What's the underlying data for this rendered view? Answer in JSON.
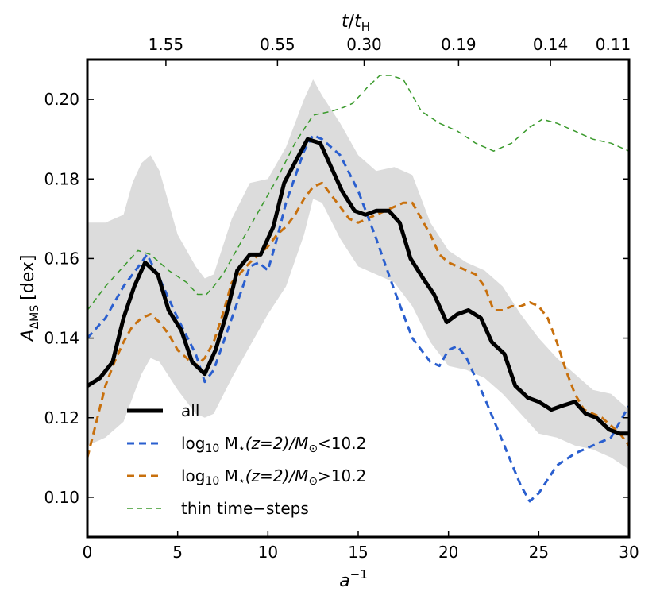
{
  "chart_data": {
    "type": "line",
    "xlabel_base": "a",
    "xlabel_sup": "−1",
    "ylabel_main": "A",
    "ylabel_sub": "ΔMS",
    "ylabel_unit": "[dex]",
    "top_axis_label_t": "t",
    "top_axis_label_slash": "/",
    "top_axis_label_tH": "t",
    "top_axis_label_H": "H",
    "xlim": [
      0,
      30
    ],
    "ylim": [
      0.09,
      0.21
    ],
    "x_ticks": [
      0,
      5,
      10,
      15,
      20,
      25,
      30
    ],
    "x_tick_labels": [
      "0",
      "5",
      "10",
      "15",
      "20",
      "25",
      "30"
    ],
    "y_ticks": [
      0.1,
      0.12,
      0.14,
      0.16,
      0.18,
      0.2
    ],
    "y_tick_labels": [
      "0.10",
      "0.12",
      "0.14",
      "0.16",
      "0.18",
      "0.20"
    ],
    "top_ticks": [
      4.35,
      10.53,
      15.33,
      20.56,
      25.65,
      30.0
    ],
    "top_tick_labels": [
      "1.55",
      "0.55",
      "0.30",
      "0.19",
      "0.14",
      "0.11"
    ],
    "legend_location": "lower-left",
    "band": {
      "x": [
        0,
        1,
        2,
        2.5,
        3,
        3.5,
        4,
        5,
        6,
        6.5,
        7,
        8,
        9,
        10,
        11,
        12,
        12.5,
        13,
        14,
        15,
        16,
        17,
        18,
        19,
        20,
        21,
        22,
        23,
        24,
        25,
        26,
        27,
        28,
        29,
        30
      ],
      "upper": [
        0.169,
        0.169,
        0.171,
        0.179,
        0.184,
        0.186,
        0.182,
        0.166,
        0.158,
        0.155,
        0.156,
        0.17,
        0.179,
        0.18,
        0.188,
        0.2,
        0.205,
        0.201,
        0.194,
        0.186,
        0.182,
        0.183,
        0.181,
        0.169,
        0.162,
        0.159,
        0.157,
        0.153,
        0.146,
        0.14,
        0.135,
        0.131,
        0.127,
        0.126,
        0.122
      ],
      "lower": [
        0.113,
        0.115,
        0.119,
        0.125,
        0.131,
        0.135,
        0.134,
        0.127,
        0.121,
        0.12,
        0.121,
        0.13,
        0.138,
        0.146,
        0.153,
        0.166,
        0.175,
        0.174,
        0.165,
        0.158,
        0.156,
        0.154,
        0.148,
        0.139,
        0.133,
        0.132,
        0.13,
        0.126,
        0.121,
        0.116,
        0.115,
        0.113,
        0.112,
        0.11,
        0.107
      ]
    },
    "series": [
      {
        "name": "all",
        "style": "solid-thick",
        "color": "#000000",
        "x": [
          0,
          0.7,
          1.4,
          2,
          2.6,
          3.2,
          3.9,
          4.5,
          5.2,
          5.8,
          6.5,
          7.1,
          7.7,
          8.3,
          9,
          9.6,
          10.3,
          10.9,
          11.6,
          12.2,
          12.9,
          13.5,
          14.1,
          14.8,
          15.4,
          16,
          16.7,
          17.3,
          17.9,
          18.6,
          19.2,
          19.9,
          20.5,
          21.1,
          21.8,
          22.4,
          23.1,
          23.7,
          24.4,
          25,
          25.7,
          26.3,
          27,
          27.6,
          28.2,
          28.9,
          29.5,
          30
        ],
        "y": [
          0.128,
          0.13,
          0.134,
          0.145,
          0.153,
          0.159,
          0.156,
          0.147,
          0.142,
          0.134,
          0.131,
          0.137,
          0.146,
          0.157,
          0.161,
          0.161,
          0.168,
          0.179,
          0.185,
          0.19,
          0.189,
          0.183,
          0.177,
          0.172,
          0.171,
          0.172,
          0.172,
          0.169,
          0.16,
          0.155,
          0.151,
          0.144,
          0.146,
          0.147,
          0.145,
          0.139,
          0.136,
          0.128,
          0.125,
          0.124,
          0.122,
          0.123,
          0.124,
          0.121,
          0.12,
          0.117,
          0.116,
          0.116
        ]
      },
      {
        "name": "log10 M*(z=2)/M⊙<10.2",
        "style": "dashed",
        "color": "#2a5fcf",
        "x": [
          0,
          1,
          2,
          3,
          3.3,
          4,
          5,
          6,
          6.5,
          7,
          8,
          9,
          9.5,
          10,
          10.5,
          11,
          12,
          12.5,
          13,
          14,
          15,
          16,
          17,
          18,
          19,
          19.5,
          20,
          20.5,
          21,
          22,
          23,
          24,
          24.5,
          25,
          26,
          27,
          28,
          29,
          30
        ],
        "y": [
          0.14,
          0.145,
          0.153,
          0.159,
          0.161,
          0.155,
          0.145,
          0.136,
          0.129,
          0.132,
          0.145,
          0.158,
          0.159,
          0.157,
          0.165,
          0.174,
          0.187,
          0.191,
          0.19,
          0.186,
          0.177,
          0.165,
          0.152,
          0.14,
          0.134,
          0.133,
          0.137,
          0.138,
          0.135,
          0.125,
          0.114,
          0.103,
          0.099,
          0.101,
          0.108,
          0.111,
          0.113,
          0.115,
          0.123
        ]
      },
      {
        "name": "log10 M*(z=2)/M⊙>10.2",
        "style": "dashed",
        "color": "#c8700d",
        "x": [
          0,
          0.5,
          1,
          1.5,
          2,
          2.5,
          3,
          3.5,
          4,
          4.5,
          5,
          5.5,
          6,
          6.5,
          7,
          7.5,
          8,
          9,
          10,
          10.5,
          11,
          11.5,
          12,
          12.5,
          13,
          13.5,
          14,
          14.5,
          15,
          15.5,
          16,
          16.5,
          17,
          17.5,
          18,
          18.5,
          19,
          19.5,
          20,
          20.5,
          21,
          21.5,
          22,
          22.5,
          23,
          23.5,
          24,
          24.5,
          25,
          25.5,
          26,
          26.5,
          27,
          27.5,
          28,
          28.5,
          29,
          29.5,
          30
        ],
        "y": [
          0.11,
          0.119,
          0.128,
          0.134,
          0.139,
          0.143,
          0.145,
          0.146,
          0.144,
          0.141,
          0.137,
          0.135,
          0.133,
          0.135,
          0.139,
          0.146,
          0.154,
          0.159,
          0.163,
          0.166,
          0.168,
          0.171,
          0.175,
          0.178,
          0.179,
          0.176,
          0.173,
          0.17,
          0.169,
          0.17,
          0.171,
          0.172,
          0.173,
          0.174,
          0.174,
          0.17,
          0.166,
          0.161,
          0.159,
          0.158,
          0.157,
          0.156,
          0.153,
          0.147,
          0.147,
          0.148,
          0.148,
          0.149,
          0.148,
          0.145,
          0.139,
          0.132,
          0.126,
          0.122,
          0.121,
          0.12,
          0.118,
          0.116,
          0.113
        ]
      },
      {
        "name": "thin time−steps",
        "style": "dashed-thin",
        "color": "#3a9a2c",
        "x": [
          0,
          1,
          2,
          2.8,
          3.5,
          4.5,
          5.5,
          6.1,
          6.6,
          7,
          7.5,
          8.5,
          9.5,
          10.5,
          11.5,
          12.5,
          13.5,
          14.2,
          14.7,
          15.5,
          16.2,
          16.8,
          17.5,
          18.5,
          19.5,
          20.5,
          21.5,
          22.5,
          23.5,
          24.5,
          25.2,
          26,
          27,
          28,
          29,
          30
        ],
        "y": [
          0.147,
          0.153,
          0.158,
          0.162,
          0.161,
          0.157,
          0.154,
          0.151,
          0.151,
          0.153,
          0.156,
          0.164,
          0.172,
          0.18,
          0.189,
          0.196,
          0.197,
          0.198,
          0.199,
          0.203,
          0.206,
          0.206,
          0.205,
          0.197,
          0.194,
          0.192,
          0.189,
          0.187,
          0.189,
          0.193,
          0.195,
          0.194,
          0.192,
          0.19,
          0.189,
          0.187
        ]
      }
    ],
    "legend": [
      {
        "label": "all",
        "style": "solid-thick",
        "color": "#000000"
      },
      {
        "label_pre": "log",
        "label_sub": "10",
        "label_main": " M",
        "label_star": "⋆",
        "label_z": "(z=2)/M",
        "label_sun": "⊙",
        "label_cmp": "<10.2",
        "style": "dashed",
        "color": "#2a5fcf"
      },
      {
        "label_pre": "log",
        "label_sub": "10",
        "label_main": " M",
        "label_star": "⋆",
        "label_z": "(z=2)/M",
        "label_sun": "⊙",
        "label_cmp": ">10.2",
        "style": "dashed",
        "color": "#c8700d"
      },
      {
        "label": "thin time−steps",
        "style": "dashed-thin",
        "color": "#3a9a2c"
      }
    ]
  }
}
